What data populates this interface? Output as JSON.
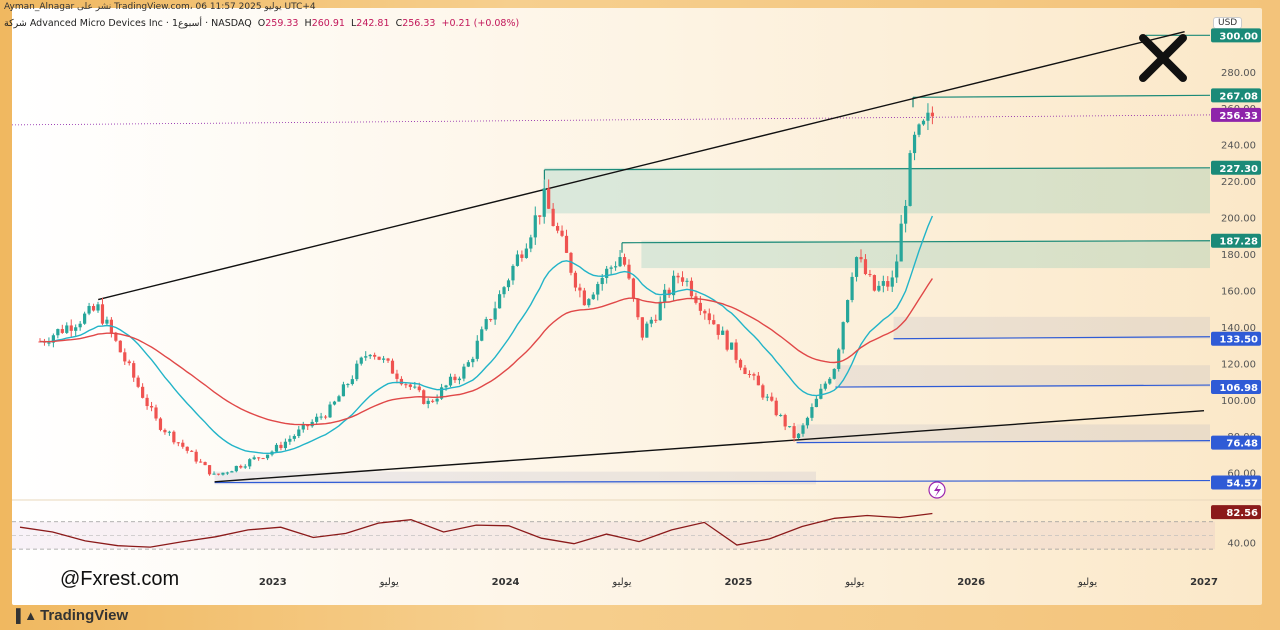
{
  "header": {
    "author_line": "Ayman_Alnagar نشر على TradingView.com، 06 يوليو 2025 11:57 UTC+4",
    "symbol_line": "شركة Advanced Micro Devices Inc · 1أسبوع · NASDAQ",
    "ohlc": {
      "o_label": "O",
      "o": "259.33",
      "h_label": "H",
      "h": "260.91",
      "l_label": "L",
      "l": "242.81",
      "c_label": "C",
      "c": "256.33",
      "change": "+0.21 (+0.08%)"
    },
    "currency": "USD"
  },
  "watermark": {
    "handle": "@Fxrest.com",
    "platform": "TradingView"
  },
  "colors": {
    "up": "#26a69a",
    "down": "#ef5350",
    "ema_fast": "#22b4c8",
    "ema_slow": "#e04848",
    "resistance": "#1b8a78",
    "support": "#2f5bd6",
    "current": "#8e24aa",
    "rsi": "#8b1a1a"
  },
  "chart_data": [
    {
      "type": "candlestick",
      "title": "Advanced Micro Devices Inc · 1W · NASDAQ",
      "x_ticks": [
        "2023",
        "يوليو",
        "2024",
        "يوليو",
        "2025",
        "يوليو",
        "2026",
        "يوليو",
        "2027"
      ],
      "y_ticks": [
        60,
        80,
        100,
        120,
        140,
        160,
        180,
        200,
        220,
        240,
        260,
        280
      ],
      "ylim": [
        45,
        315
      ],
      "current_price": 256.33,
      "resistance_levels": [
        300.0,
        267.08,
        227.3,
        187.28
      ],
      "support_levels": [
        133.5,
        106.98,
        76.48,
        54.57
      ],
      "trendlines": [
        {
          "name": "upper-channel",
          "from": [
            "2022-04",
            155
          ],
          "to": [
            "2026-12",
            302
          ]
        },
        {
          "name": "lower-channel",
          "from": [
            "2022-10",
            55
          ],
          "to": [
            "2027-01",
            94
          ]
        }
      ],
      "series": [
        {
          "name": "AMD",
          "anchors": [
            [
              "2022-01",
              132
            ],
            [
              "2022-04",
              150
            ],
            [
              "2022-07",
              88
            ],
            [
              "2022-10",
              58
            ],
            [
              "2023-01",
              72
            ],
            [
              "2023-04",
              95
            ],
            [
              "2023-06",
              128
            ],
            [
              "2023-09",
              98
            ],
            [
              "2023-11",
              118
            ],
            [
              "2024-03",
              210
            ],
            [
              "2024-05",
              155
            ],
            [
              "2024-07",
              180
            ],
            [
              "2024-08",
              135
            ],
            [
              "2024-10",
              170
            ],
            [
              "2025-01",
              122
            ],
            [
              "2025-04",
              78
            ],
            [
              "2025-06",
              120
            ],
            [
              "2025-07",
              180
            ],
            [
              "2025-08",
              160
            ],
            [
              "2025-09",
              165
            ],
            [
              "2025-10",
              240
            ],
            [
              "2025-11",
              256
            ]
          ]
        }
      ]
    },
    {
      "type": "line",
      "title": "RSI",
      "y_ticks": [
        40.0
      ],
      "last_value": 82.56,
      "series": [
        {
          "name": "RSI",
          "values": [
            62,
            55,
            42,
            35,
            33,
            41,
            48,
            58,
            62,
            47,
            53,
            68,
            73,
            55,
            65,
            64,
            46,
            38,
            52,
            41,
            58,
            69,
            36,
            45,
            63,
            75,
            79,
            76,
            82
          ]
        }
      ]
    }
  ]
}
